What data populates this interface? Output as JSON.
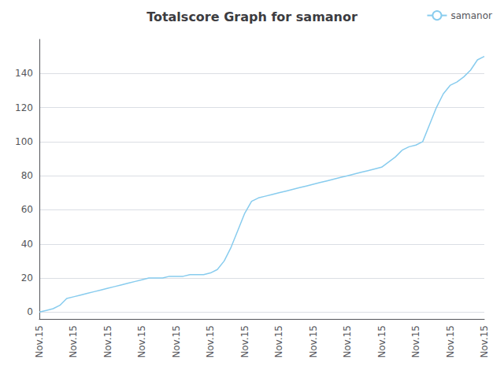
{
  "chart_data": {
    "type": "line",
    "title": "Totalscore Graph for samanor",
    "categories": [
      "Nov.15",
      null,
      null,
      null,
      null,
      "Nov.15",
      null,
      null,
      null,
      null,
      "Nov.15",
      null,
      null,
      null,
      null,
      "Nov.15",
      null,
      null,
      null,
      null,
      "Nov.15",
      null,
      null,
      null,
      null,
      "Nov.15",
      null,
      null,
      null,
      null,
      "Nov.15",
      null,
      null,
      null,
      null,
      "Nov.15",
      null,
      null,
      null,
      null,
      "Nov.15",
      null,
      null,
      null,
      null,
      "Nov.15",
      null,
      null,
      null,
      null,
      "Nov.15",
      null,
      null,
      null,
      null,
      "Nov.15",
      null,
      null,
      null,
      null,
      "Nov.15",
      null,
      null,
      null,
      null,
      "Nov.15"
    ],
    "series": [
      {
        "name": "samanor",
        "color": "#88ccee",
        "values": [
          0,
          1,
          2,
          4,
          8,
          9,
          10,
          11,
          12,
          13,
          14,
          15,
          16,
          17,
          18,
          19,
          20,
          20,
          20,
          21,
          21,
          21,
          22,
          22,
          22,
          23,
          25,
          30,
          38,
          48,
          58,
          65,
          67,
          68,
          69,
          70,
          71,
          72,
          73,
          74,
          75,
          76,
          77,
          78,
          79,
          80,
          81,
          82,
          83,
          84,
          85,
          88,
          91,
          95,
          97,
          98,
          100,
          110,
          120,
          128,
          133,
          135,
          138,
          142,
          148,
          150
        ]
      }
    ],
    "ylim": [
      -4,
      160
    ],
    "yticks": [
      0,
      20,
      40,
      60,
      80,
      100,
      120,
      140
    ],
    "grid": true,
    "legend": "upper right"
  }
}
